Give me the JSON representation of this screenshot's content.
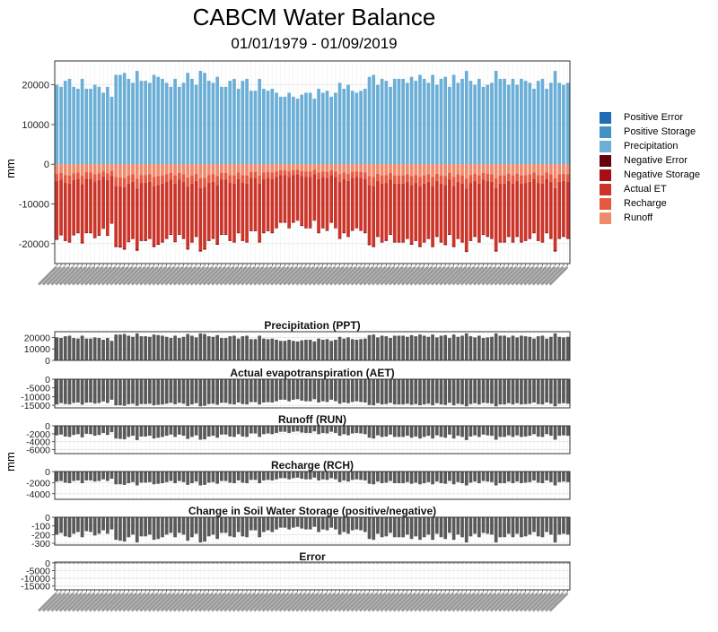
{
  "title": "CABCM Water Balance",
  "subtitle": "01/01/1979 - 01/09/2019",
  "ylabel": "mm",
  "legend": [
    {
      "label": "Positive Error",
      "color": "#1f6db3"
    },
    {
      "label": "Positive Storage",
      "color": "#4292c6"
    },
    {
      "label": "Precipitation",
      "color": "#6baed6"
    },
    {
      "label": "Negative Error",
      "color": "#67000d"
    },
    {
      "label": "Negative Storage",
      "color": "#a50f15"
    },
    {
      "label": "Actual ET",
      "color": "#cb3529"
    },
    {
      "label": "Recharge",
      "color": "#e65840"
    },
    {
      "label": "Runoff",
      "color": "#f08a6c"
    }
  ],
  "chart_data": [
    {
      "type": "bar",
      "title": "",
      "ylabel": "mm",
      "stacked": true,
      "ylim": [
        -25000,
        26000
      ],
      "yticks": [
        20000,
        10000,
        0,
        -10000,
        -20000
      ],
      "yticklabels": [
        "20000",
        "10000",
        "0",
        "-10000",
        "-20000"
      ],
      "n_bars": 122,
      "x_ticklabels_note": "x-axis date tick labels are rotated and overlapping (illegible)",
      "series": [
        {
          "name": "Precipitation",
          "values": [
            20000,
            19500,
            21000,
            21500,
            19500,
            19000,
            21500,
            19000,
            19000,
            20000,
            19500,
            18000,
            19500,
            17000,
            22500,
            22500,
            23000,
            21500,
            20500,
            23500,
            21000,
            21000,
            20500,
            22500,
            22000,
            21500,
            20500,
            19500,
            21500,
            19500,
            20500,
            23000,
            21500,
            20000,
            23500,
            23000,
            21000,
            20500,
            22000,
            19500,
            19500,
            21000,
            21500,
            19000,
            21000,
            21500,
            18500,
            18500,
            21500,
            19000,
            18500,
            19000,
            18000,
            17000,
            17000,
            18000,
            17000,
            16500,
            17500,
            18000,
            18000,
            16500,
            19000,
            18000,
            18500,
            17000,
            18000,
            20500,
            19000,
            20000,
            18500,
            18000,
            18500,
            19000,
            22000,
            22500,
            20000,
            21500,
            21000,
            19500,
            21500,
            21500,
            21500,
            20500,
            22000,
            21000,
            22500,
            21500,
            20500,
            22500,
            20000,
            21500,
            22000,
            19500,
            22500,
            20500,
            21500,
            23500,
            21000,
            20000,
            21500,
            19500,
            20000,
            20500,
            23500,
            21500,
            21500,
            20000,
            21500,
            20000,
            21500,
            21000,
            20500,
            19000,
            21000,
            21500,
            19000,
            20500,
            23500,
            20500,
            20000,
            20500
          ]
        },
        {
          "name": "Runoff",
          "values": [
            -2400,
            -2200,
            -2700,
            -2800,
            -2300,
            -2100,
            -2900,
            -2000,
            -2100,
            -2500,
            -2300,
            -1800,
            -2300,
            -1600,
            -3200,
            -3300,
            -3400,
            -2800,
            -2500,
            -3600,
            -2700,
            -2700,
            -2500,
            -3200,
            -3000,
            -2800,
            -2500,
            -2200,
            -2800,
            -2200,
            -2500,
            -3300,
            -2800,
            -2400,
            -3500,
            -3400,
            -2700,
            -2500,
            -3000,
            -2200,
            -2200,
            -2700,
            -2800,
            -2100,
            -2700,
            -2800,
            -1900,
            -1900,
            -2800,
            -2100,
            -1900,
            -2100,
            -1800,
            -1500,
            -1500,
            -1800,
            -1500,
            -1400,
            -1700,
            -1800,
            -1800,
            -1400,
            -2100,
            -1800,
            -1900,
            -1500,
            -1800,
            -2500,
            -2100,
            -2400,
            -1900,
            -1800,
            -1900,
            -2100,
            -3000,
            -3200,
            -2400,
            -2800,
            -2700,
            -2200,
            -2800,
            -2800,
            -2800,
            -2500,
            -3000,
            -2700,
            -3200,
            -2800,
            -2500,
            -3200,
            -2400,
            -2800,
            -3000,
            -2200,
            -3200,
            -2500,
            -2800,
            -3600,
            -2700,
            -2400,
            -2800,
            -2200,
            -2400,
            -2500,
            -3500,
            -2800,
            -2800,
            -2400,
            -2800,
            -2400,
            -2800,
            -2700,
            -2500,
            -2100,
            -2700,
            -2800,
            -2100,
            -2500,
            -3500,
            -2500,
            -2400,
            -2500
          ]
        },
        {
          "name": "Recharge",
          "values": [
            -1800,
            -1700,
            -2000,
            -2100,
            -1700,
            -1600,
            -2100,
            -1600,
            -1600,
            -1800,
            -1700,
            -1400,
            -1700,
            -1300,
            -2300,
            -2300,
            -2400,
            -2100,
            -1900,
            -2500,
            -2000,
            -2000,
            -1900,
            -2300,
            -2200,
            -2100,
            -1900,
            -1700,
            -2100,
            -1700,
            -1900,
            -2400,
            -2100,
            -1800,
            -2500,
            -2400,
            -2000,
            -1900,
            -2200,
            -1700,
            -1700,
            -2000,
            -2100,
            -1600,
            -2000,
            -2100,
            -1500,
            -1500,
            -2100,
            -1600,
            -1500,
            -1600,
            -1400,
            -1200,
            -1200,
            -1400,
            -1200,
            -1100,
            -1300,
            -1400,
            -1400,
            -1100,
            -1600,
            -1400,
            -1500,
            -1200,
            -1400,
            -1900,
            -1600,
            -1800,
            -1500,
            -1400,
            -1500,
            -1600,
            -2200,
            -2300,
            -1800,
            -2100,
            -2000,
            -1700,
            -2100,
            -2100,
            -2100,
            -1900,
            -2200,
            -2000,
            -2300,
            -2100,
            -1900,
            -2300,
            -1800,
            -2100,
            -2200,
            -1700,
            -2300,
            -1900,
            -2100,
            -2500,
            -2000,
            -1800,
            -2100,
            -1700,
            -1800,
            -1900,
            -2500,
            -2100,
            -2100,
            -1800,
            -2100,
            -1800,
            -2100,
            -2000,
            -1900,
            -1600,
            -2000,
            -2100,
            -1600,
            -1900,
            -2500,
            -1900,
            -1800,
            -1900
          ]
        },
        {
          "name": "Actual ET",
          "values": [
            -14500,
            -13700,
            -14300,
            -14500,
            -13600,
            -13400,
            -14600,
            -13500,
            -13400,
            -14000,
            -13700,
            -12800,
            -13700,
            -11800,
            -15000,
            -15000,
            -15300,
            -14400,
            -14100,
            -15300,
            -14300,
            -14300,
            -14100,
            -15000,
            -14700,
            -14500,
            -14100,
            -13600,
            -14400,
            -13600,
            -14100,
            -15400,
            -14500,
            -13800,
            -15600,
            -15300,
            -14300,
            -14100,
            -14700,
            -13600,
            -13600,
            -14300,
            -14500,
            -13400,
            -14300,
            -14500,
            -13200,
            -13200,
            -14500,
            -13400,
            -13200,
            -13400,
            -12700,
            -11800,
            -11800,
            -12700,
            -11800,
            -11500,
            -12300,
            -12700,
            -12700,
            -11500,
            -13400,
            -12700,
            -13100,
            -11800,
            -12700,
            -14100,
            -13400,
            -13800,
            -13100,
            -12700,
            -13100,
            -13400,
            -14800,
            -15000,
            -13800,
            -14500,
            -14300,
            -13600,
            -14500,
            -14500,
            -14500,
            -14100,
            -14700,
            -14300,
            -15000,
            -14500,
            -14100,
            -15000,
            -13800,
            -14500,
            -14800,
            -13600,
            -15000,
            -14100,
            -14500,
            -15600,
            -14300,
            -13800,
            -14500,
            -13600,
            -13800,
            -14100,
            -15600,
            -14500,
            -14500,
            -13800,
            -14500,
            -13800,
            -14500,
            -14300,
            -14100,
            -13400,
            -14300,
            -14500,
            -13400,
            -14100,
            -15600,
            -14100,
            -13800,
            -14100
          ]
        },
        {
          "name": "Negative Storage",
          "values": [
            -200,
            -180,
            -220,
            -230,
            -190,
            -170,
            -230,
            -160,
            -170,
            -210,
            -190,
            -150,
            -190,
            -140,
            -260,
            -270,
            -280,
            -230,
            -200,
            -290,
            -220,
            -220,
            -200,
            -260,
            -250,
            -230,
            -200,
            -180,
            -230,
            -180,
            -200,
            -270,
            -230,
            -190,
            -290,
            -280,
            -220,
            -200,
            -250,
            -180,
            -180,
            -220,
            -230,
            -170,
            -220,
            -230,
            -150,
            -150,
            -230,
            -170,
            -150,
            -170,
            -140,
            -120,
            -120,
            -140,
            -120,
            -110,
            -130,
            -140,
            -140,
            -110,
            -170,
            -140,
            -150,
            -120,
            -140,
            -200,
            -170,
            -190,
            -150,
            -140,
            -150,
            -170,
            -250,
            -260,
            -190,
            -230,
            -220,
            -180,
            -230,
            -230,
            -230,
            -200,
            -250,
            -220,
            -260,
            -230,
            -200,
            -260,
            -190,
            -230,
            -250,
            -180,
            -260,
            -200,
            -230,
            -290,
            -220,
            -190,
            -230,
            -180,
            -190,
            -200,
            -290,
            -230,
            -230,
            -190,
            -230,
            -190,
            -230,
            -220,
            -200,
            -170,
            -220,
            -230,
            -170,
            -200,
            -290,
            -200,
            -190,
            -200
          ]
        },
        {
          "name": "Negative Error",
          "values": [
            -100,
            -100,
            -100,
            -100,
            -100,
            -100,
            -100,
            -100,
            -100,
            -100,
            -100,
            -100,
            -100,
            -100,
            -100,
            -100,
            -100,
            -100,
            -100,
            -100,
            -100,
            -100,
            -100,
            -100,
            -100,
            -100,
            -100,
            -100,
            -100,
            -100,
            -100,
            -100,
            -100,
            -100,
            -100,
            -100,
            -100,
            -100,
            -100,
            -100,
            -100,
            -100,
            -100,
            -100,
            -100,
            -100,
            -100,
            -100,
            -100,
            -100,
            -100,
            -100,
            -100,
            -100,
            -100,
            -100,
            -100,
            -100,
            -100,
            -100,
            -100,
            -100,
            -100,
            -100,
            -100,
            -100,
            -100,
            -100,
            -100,
            -100,
            -100,
            -100,
            -100,
            -100,
            -100,
            -100,
            -100,
            -100,
            -100,
            -100,
            -100,
            -100,
            -100,
            -100,
            -100,
            -100,
            -100,
            -100,
            -100,
            -100,
            -100,
            -100,
            -100,
            -100,
            -100,
            -100,
            -100,
            -100,
            -100,
            -100,
            -100,
            -100,
            -100,
            -100,
            -100,
            -100,
            -100,
            -100,
            -100,
            -100,
            -100,
            -100,
            -100,
            -100,
            -100,
            -100,
            -100,
            -100,
            -100,
            -100,
            -100,
            -100
          ]
        }
      ]
    },
    {
      "type": "bar",
      "title": "Precipitation (PPT)",
      "ylim": [
        0,
        25000
      ],
      "yticks": [
        20000,
        10000,
        0
      ],
      "yticklabels": [
        "20000",
        "10000",
        "0"
      ],
      "series_ref": "Precipitation"
    },
    {
      "type": "bar",
      "title": "Actual evapotranspiration (AET)",
      "ylim": [
        -16500,
        0
      ],
      "yticks": [
        0,
        -5000,
        -10000,
        -15000
      ],
      "yticklabels": [
        "0",
        "-5000",
        "-10000",
        "-15000"
      ],
      "series_ref": "Actual ET"
    },
    {
      "type": "bar",
      "title": "Runoff (RUN)",
      "ylim": [
        -7000,
        0
      ],
      "yticks": [
        0,
        -2000,
        -4000,
        -6000
      ],
      "yticklabels": [
        "0",
        "-2000",
        "-4000",
        "-6000"
      ],
      "series_ref": "Runoff"
    },
    {
      "type": "bar",
      "title": "Recharge (RCH)",
      "ylim": [
        -5000,
        0
      ],
      "yticks": [
        0,
        -2000,
        -4000
      ],
      "yticklabels": [
        "0",
        "-2000",
        "-4000"
      ],
      "series_ref": "Recharge"
    },
    {
      "type": "bar",
      "title": "Change in Soil Water Storage (positive/negative)",
      "ylim": [
        -320,
        0
      ],
      "yticks": [
        0,
        -100,
        -200,
        -300
      ],
      "yticklabels": [
        "0",
        "-100",
        "-200",
        "-300"
      ],
      "series_ref": "Negative Storage"
    },
    {
      "type": "bar",
      "title": "Error",
      "ylim": [
        -17500,
        500
      ],
      "yticks": [
        0,
        -5000,
        -10000,
        -15000
      ],
      "yticklabels": [
        "0",
        "-5000",
        "-10000",
        "-15000"
      ],
      "series_ref": "Negative Error"
    }
  ]
}
